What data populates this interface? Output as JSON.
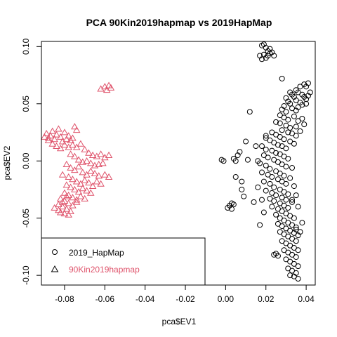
{
  "chart_data": {
    "type": "scatter",
    "title": "PCA 90Kin2019hapmap vs 2019HapMap",
    "xlabel": "pca$EV1",
    "ylabel": "pca$EV2",
    "xlim": [
      -0.0915,
      0.0445
    ],
    "ylim": [
      -0.1085,
      0.1045
    ],
    "x_ticks": [
      -0.08,
      -0.06,
      -0.04,
      -0.02,
      0.0,
      0.02,
      0.04
    ],
    "x_tick_labels": [
      "-0.08",
      "-0.06",
      "-0.04",
      "-0.02",
      "0.00",
      "0.02",
      "0.04"
    ],
    "y_ticks": [
      -0.1,
      -0.05,
      0.0,
      0.05,
      0.1
    ],
    "y_tick_labels": [
      "-0.10",
      "-0.05",
      "0.00",
      "0.05",
      "0.10"
    ],
    "grid": false,
    "legend_position": "bottom-left",
    "series": [
      {
        "name": "2019_HapMap",
        "marker": "circle",
        "color": "#000000",
        "points": [
          [
            0.018,
            0.101
          ],
          [
            0.019,
            0.102
          ],
          [
            0.02,
            0.099
          ],
          [
            0.021,
            0.096
          ],
          [
            0.022,
            0.098
          ],
          [
            0.017,
            0.092
          ],
          [
            0.019,
            0.093
          ],
          [
            0.02,
            0.09
          ],
          [
            0.021,
            0.092
          ],
          [
            0.022,
            0.094
          ],
          [
            0.023,
            0.095
          ],
          [
            0.018,
            0.089
          ],
          [
            0.024,
            0.092
          ],
          [
            0.028,
            0.072
          ],
          [
            0.035,
            0.062
          ],
          [
            0.037,
            0.065
          ],
          [
            0.039,
            0.067
          ],
          [
            0.04,
            0.065
          ],
          [
            0.041,
            0.068
          ],
          [
            0.032,
            0.06
          ],
          [
            0.033,
            0.058
          ],
          [
            0.034,
            0.056
          ],
          [
            0.036,
            0.06
          ],
          [
            0.038,
            0.058
          ],
          [
            0.039,
            0.056
          ],
          [
            0.04,
            0.054
          ],
          [
            0.041,
            0.057
          ],
          [
            0.042,
            0.06
          ],
          [
            0.03,
            0.055
          ],
          [
            0.031,
            0.052
          ],
          [
            0.032,
            0.05
          ],
          [
            0.035,
            0.053
          ],
          [
            0.037,
            0.051
          ],
          [
            0.038,
            0.049
          ],
          [
            0.04,
            0.05
          ],
          [
            0.029,
            0.048
          ],
          [
            0.028,
            0.045
          ],
          [
            0.03,
            0.043
          ],
          [
            0.033,
            0.046
          ],
          [
            0.035,
            0.044
          ],
          [
            0.036,
            0.047
          ],
          [
            0.027,
            0.04
          ],
          [
            0.029,
            0.038
          ],
          [
            0.031,
            0.036
          ],
          [
            0.034,
            0.039
          ],
          [
            0.036,
            0.035
          ],
          [
            0.038,
            0.037
          ],
          [
            0.025,
            0.034
          ],
          [
            0.027,
            0.033
          ],
          [
            0.03,
            0.031
          ],
          [
            0.032,
            0.029
          ],
          [
            0.035,
            0.03
          ],
          [
            0.039,
            0.032
          ],
          [
            0.028,
            0.027
          ],
          [
            0.031,
            0.025
          ],
          [
            0.033,
            0.024
          ],
          [
            0.035,
            0.022
          ],
          [
            0.037,
            0.026
          ],
          [
            0.023,
            0.025
          ],
          [
            0.025,
            0.023
          ],
          [
            0.027,
            0.021
          ],
          [
            0.029,
            0.019
          ],
          [
            0.032,
            0.017
          ],
          [
            0.034,
            0.015
          ],
          [
            0.02,
            0.02
          ],
          [
            0.022,
            0.018
          ],
          [
            0.024,
            0.016
          ],
          [
            0.026,
            0.014
          ],
          [
            0.028,
            0.013
          ],
          [
            0.03,
            0.011
          ],
          [
            0.018,
            0.013
          ],
          [
            0.02,
            0.01
          ],
          [
            0.023,
            0.009
          ],
          [
            0.025,
            0.007
          ],
          [
            0.027,
            0.006
          ],
          [
            0.029,
            0.004
          ],
          [
            0.031,
            0.002
          ],
          [
            0.019,
            0.005
          ],
          [
            0.021,
            0.003
          ],
          [
            0.024,
            0.001
          ],
          [
            0.026,
            -0.001
          ],
          [
            0.028,
            -0.003
          ],
          [
            0.03,
            -0.005
          ],
          [
            0.033,
            -0.006
          ],
          [
            0.017,
            -0.002
          ],
          [
            0.02,
            -0.004
          ],
          [
            0.022,
            -0.007
          ],
          [
            0.025,
            -0.009
          ],
          [
            0.027,
            -0.011
          ],
          [
            0.029,
            -0.013
          ],
          [
            0.032,
            -0.015
          ],
          [
            0.018,
            -0.01
          ],
          [
            0.021,
            -0.012
          ],
          [
            0.023,
            -0.014
          ],
          [
            0.026,
            -0.016
          ],
          [
            0.028,
            -0.018
          ],
          [
            0.03,
            -0.02
          ],
          [
            0.034,
            -0.022
          ],
          [
            0.019,
            -0.018
          ],
          [
            0.022,
            -0.02
          ],
          [
            0.024,
            -0.023
          ],
          [
            0.027,
            -0.025
          ],
          [
            0.029,
            -0.027
          ],
          [
            0.031,
            -0.029
          ],
          [
            0.02,
            -0.026
          ],
          [
            0.023,
            -0.028
          ],
          [
            0.025,
            -0.03
          ],
          [
            0.028,
            -0.032
          ],
          [
            0.03,
            -0.034
          ],
          [
            0.033,
            -0.036
          ],
          [
            0.022,
            -0.033
          ],
          [
            0.024,
            -0.035
          ],
          [
            0.027,
            -0.037
          ],
          [
            0.029,
            -0.039
          ],
          [
            0.031,
            -0.041
          ],
          [
            0.023,
            -0.04
          ],
          [
            0.026,
            -0.042
          ],
          [
            0.028,
            -0.044
          ],
          [
            0.03,
            -0.046
          ],
          [
            0.032,
            -0.048
          ],
          [
            0.034,
            -0.05
          ],
          [
            0.025,
            -0.047
          ],
          [
            0.027,
            -0.05
          ],
          [
            0.029,
            -0.052
          ],
          [
            0.031,
            -0.054
          ],
          [
            0.033,
            -0.056
          ],
          [
            0.035,
            -0.058
          ],
          [
            0.026,
            -0.055
          ],
          [
            0.028,
            -0.057
          ],
          [
            0.03,
            -0.059
          ],
          [
            0.032,
            -0.061
          ],
          [
            0.034,
            -0.063
          ],
          [
            0.036,
            -0.065
          ],
          [
            0.027,
            -0.062
          ],
          [
            0.029,
            -0.064
          ],
          [
            0.031,
            -0.066
          ],
          [
            0.033,
            -0.068
          ],
          [
            0.035,
            -0.07
          ],
          [
            0.028,
            -0.07
          ],
          [
            0.03,
            -0.072
          ],
          [
            0.032,
            -0.074
          ],
          [
            0.034,
            -0.076
          ],
          [
            0.036,
            -0.078
          ],
          [
            0.029,
            -0.078
          ],
          [
            0.031,
            -0.08
          ],
          [
            0.033,
            -0.082
          ],
          [
            0.035,
            -0.084
          ],
          [
            0.03,
            -0.086
          ],
          [
            0.032,
            -0.088
          ],
          [
            0.034,
            -0.09
          ],
          [
            0.036,
            -0.092
          ],
          [
            0.031,
            -0.094
          ],
          [
            0.033,
            -0.096
          ],
          [
            0.035,
            -0.098
          ],
          [
            0.032,
            -0.1
          ],
          [
            0.034,
            -0.101
          ],
          [
            0.036,
            -0.103
          ],
          [
            0.024,
            -0.082
          ],
          [
            0.025,
            -0.081
          ],
          [
            0.026,
            -0.083
          ],
          [
            0.035,
            -0.06
          ],
          [
            0.037,
            -0.062
          ],
          [
            0.038,
            -0.054
          ],
          [
            0.033,
            -0.034
          ],
          [
            0.035,
            -0.03
          ],
          [
            0.036,
            -0.04
          ],
          [
            0.02,
            0.022
          ],
          [
            0.015,
            0.013
          ],
          [
            0.016,
            0.0
          ],
          [
            0.016,
            -0.023
          ],
          [
            0.018,
            -0.034
          ],
          [
            0.014,
            -0.036
          ],
          [
            0.019,
            -0.045
          ],
          [
            0.017,
            -0.056
          ],
          [
            0.012,
            0.043
          ],
          [
            0.01,
            0.017
          ],
          [
            0.011,
            0.001
          ],
          [
            0.008,
            -0.018
          ],
          [
            0.005,
            -0.014
          ],
          [
            0.005,
            0.0
          ],
          [
            0.006,
            0.005
          ],
          [
            0.007,
            0.008
          ],
          [
            0.004,
            0.002
          ],
          [
            -0.001,
            0.0
          ],
          [
            -0.002,
            0.001
          ],
          [
            0.003,
            -0.037
          ],
          [
            0.003,
            -0.042
          ],
          [
            0.002,
            -0.039
          ],
          [
            0.001,
            -0.041
          ],
          [
            0.004,
            -0.038
          ],
          [
            0.009,
            -0.031
          ],
          [
            0.008,
            -0.025
          ]
        ]
      },
      {
        "name": "90Kin2019hapmap",
        "marker": "triangle",
        "color": "#df536b",
        "points": [
          [
            -0.062,
            0.063
          ],
          [
            -0.06,
            0.065
          ],
          [
            -0.058,
            0.066
          ],
          [
            -0.059,
            0.062
          ],
          [
            -0.057,
            0.064
          ],
          [
            -0.089,
            0.024
          ],
          [
            -0.088,
            0.02
          ],
          [
            -0.087,
            0.022
          ],
          [
            -0.086,
            0.026
          ],
          [
            -0.085,
            0.019
          ],
          [
            -0.084,
            0.023
          ],
          [
            -0.083,
            0.028
          ],
          [
            -0.082,
            0.021
          ],
          [
            -0.081,
            0.017
          ],
          [
            -0.08,
            0.025
          ],
          [
            -0.079,
            0.019
          ],
          [
            -0.078,
            0.022
          ],
          [
            -0.077,
            0.018
          ],
          [
            -0.076,
            0.02
          ],
          [
            -0.075,
            0.03
          ],
          [
            -0.074,
            0.027
          ],
          [
            -0.086,
            0.015
          ],
          [
            -0.084,
            0.013
          ],
          [
            -0.082,
            0.011
          ],
          [
            -0.08,
            0.014
          ],
          [
            -0.078,
            0.012
          ],
          [
            -0.076,
            0.014
          ],
          [
            -0.074,
            0.012
          ],
          [
            -0.072,
            0.015
          ],
          [
            -0.07,
            0.01
          ],
          [
            -0.068,
            0.007
          ],
          [
            -0.066,
            0.005
          ],
          [
            -0.064,
            0.004
          ],
          [
            -0.062,
            0.006
          ],
          [
            -0.06,
            0.003
          ],
          [
            -0.058,
            0.005
          ],
          [
            -0.077,
            0.006
          ],
          [
            -0.075,
            0.004
          ],
          [
            -0.073,
            0.001
          ],
          [
            -0.071,
            -0.001
          ],
          [
            -0.069,
            0.0
          ],
          [
            -0.067,
            -0.002
          ],
          [
            -0.065,
            -0.004
          ],
          [
            -0.063,
            -0.003
          ],
          [
            -0.061,
            -0.002
          ],
          [
            -0.079,
            -0.003
          ],
          [
            -0.077,
            -0.006
          ],
          [
            -0.075,
            -0.008
          ],
          [
            -0.073,
            -0.005
          ],
          [
            -0.071,
            -0.01
          ],
          [
            -0.069,
            -0.012
          ],
          [
            -0.067,
            -0.009
          ],
          [
            -0.065,
            -0.011
          ],
          [
            -0.063,
            -0.013
          ],
          [
            -0.06,
            -0.012
          ],
          [
            -0.058,
            -0.014
          ],
          [
            -0.081,
            -0.012
          ],
          [
            -0.078,
            -0.014
          ],
          [
            -0.076,
            -0.016
          ],
          [
            -0.074,
            -0.018
          ],
          [
            -0.072,
            -0.02
          ],
          [
            -0.07,
            -0.017
          ],
          [
            -0.068,
            -0.019
          ],
          [
            -0.066,
            -0.022
          ],
          [
            -0.064,
            -0.018
          ],
          [
            -0.062,
            -0.02
          ],
          [
            -0.079,
            -0.021
          ],
          [
            -0.077,
            -0.023
          ],
          [
            -0.075,
            -0.025
          ],
          [
            -0.073,
            -0.027
          ],
          [
            -0.071,
            -0.024
          ],
          [
            -0.069,
            -0.026
          ],
          [
            -0.067,
            -0.028
          ],
          [
            -0.08,
            -0.028
          ],
          [
            -0.078,
            -0.03
          ],
          [
            -0.076,
            -0.032
          ],
          [
            -0.074,
            -0.034
          ],
          [
            -0.072,
            -0.031
          ],
          [
            -0.07,
            -0.033
          ],
          [
            -0.082,
            -0.033
          ],
          [
            -0.08,
            -0.035
          ],
          [
            -0.078,
            -0.037
          ],
          [
            -0.076,
            -0.039
          ],
          [
            -0.074,
            -0.036
          ],
          [
            -0.083,
            -0.038
          ],
          [
            -0.081,
            -0.04
          ],
          [
            -0.079,
            -0.042
          ],
          [
            -0.077,
            -0.044
          ],
          [
            -0.082,
            -0.045
          ],
          [
            -0.08,
            -0.046
          ],
          [
            -0.078,
            -0.047
          ],
          [
            -0.083,
            -0.043
          ],
          [
            -0.081,
            -0.036
          ],
          [
            -0.079,
            -0.031
          ],
          [
            -0.085,
            -0.041
          ],
          [
            -0.088,
            0.018
          ],
          [
            -0.09,
            0.021
          ]
        ]
      }
    ]
  }
}
